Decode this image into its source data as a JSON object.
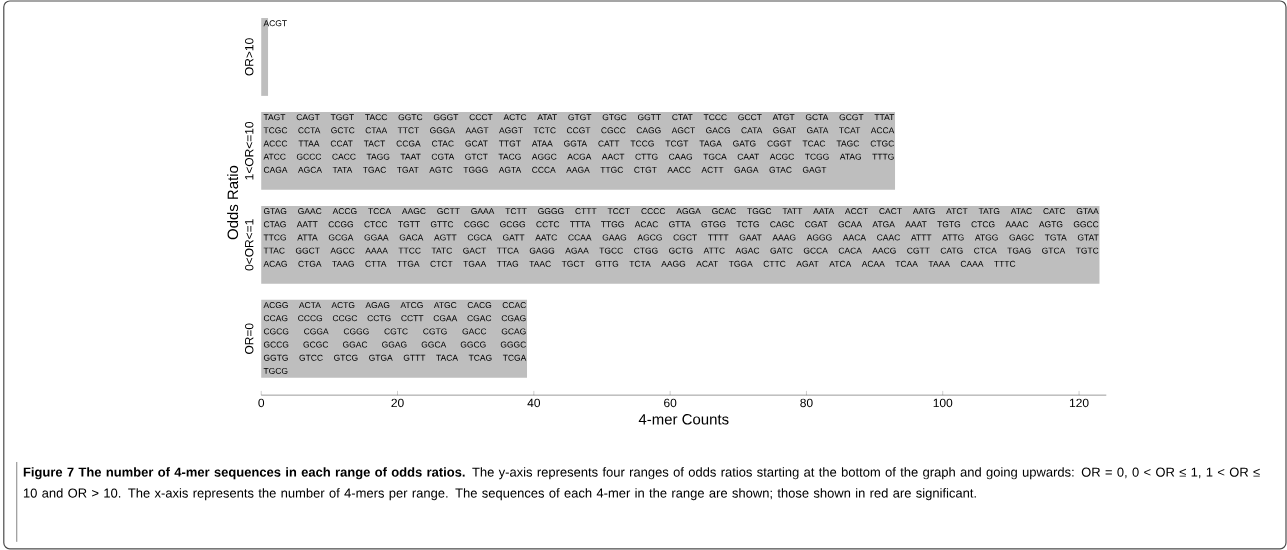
{
  "chart_data": {
    "type": "bar",
    "orientation": "horizontal",
    "title": "**Figure 7 The number of 4-mer sequences in each range of odds ratios.** The y-axis represents four ranges of odds ratios starting at the bottom of the graph and going upwards: OR = 0, 0 < OR ≤ 1, 1 < OR ≤ 10 and OR > 10. The x-axis represents the number of 4-mers per range. The sequences of each 4-mer in the range are shown; those shown in red are significant.",
    "xlabel": "4-mer Counts",
    "ylabel": "Odds Ratio",
    "categories": [
      "OR>10",
      "1<OR<=10",
      "0<OR<=1",
      "OR=0"
    ],
    "values": [
      1,
      93,
      123,
      39
    ],
    "color": "#bebebe",
    "xlim": [
      0,
      124
    ],
    "xticks": [
      0,
      20,
      40,
      60,
      80,
      100,
      120
    ],
    "annotations": [
      "ACGT",
      "TAGT CAGT TGGT TACC GGTC GGGT CCCT ACTC ATAT GTGT GTGC GGTT CTAT TCCC GCCT ATGT GCTA GCGT TTAT TCGC CCTA GCTC CTAA TTCT GGGA AAGT AGGT TCTC CCGT CGCC CAGG AGCT GACG CATA GGAT GATA TCAT ACCA ACCC TTAA CCAT TACT CCGA CTAC GCAT TTGT ATAA GGTA CATT TCCG TCGT TAGA GATG CGGT TCAC TAGC CTGC ATCC GCCC CACC TAGG TAAT CGTA GTCT TACG AGGC ACGA AACT CTTG CAAG TGCA CAAT ACGC TCGG ATAG TTTG CAGA AGCA TATA TGAC TGAT AGTC TGGG AGTA CCCA AAGA TTGC CTGT AACC ACTT GAGA GTAC GAGT",
      "GTAG GAAC ACCG TCCA AAGC GCTT GAAA TCTT GGGG CTTT TCCT CCCC AGGA GCAC TGGC TATT AATA ACCT CACT AATG ATCT TATG ATAC CATC GTAA CTAG AATT CCGG CTCC TGTT GTTC CGGC GCGG CCTC TTTA TTGG ACAC GTTA GTGG TCTG CAGC CGAT GCAA ATGA AAAT TGTG CTCG AAAC AGTG GGCC TTCG ATTA GCGA GGAA GACA AGTT CGCA GATT AATC CCAA GAAG AGCG CGCT TTTT GAAT AAAG AGGG AACA CAAC ATTT ATTG ATGG GAGC TGTA GTAT TTAC GGCT AGCC AAAA TTCC TATC GACT TTCA GAGG AGAA TGCC CTGG GCTG ATTC AGAC GATC GCCA CACA AACG CGTT CATG CTCA TGAG GTCA TGTC ACAG CTGA TAAG CTTA TTGA CTCT TGAA TTAG TAAC TGCT GTTG TCTA AAGG ACAT TGGA CTTC AGAT ATCA ACAA TCAA TAAA CAAA TTTC",
      "ACGG ACTA ACTG AGAG ATCG ATGC CACG CCAC CCAG CCCG CCGC CCTG CCTT CGAA CGAC CGAG CGCG CGGA CGGG CGTC CGTG GACC GCAG GCCG GCGC GGAC GGAG GGCA GGCG GGGC GGTG GTCC GTCG GTGA GTTT TACA TCAG TCGA TGCG"
    ]
  }
}
